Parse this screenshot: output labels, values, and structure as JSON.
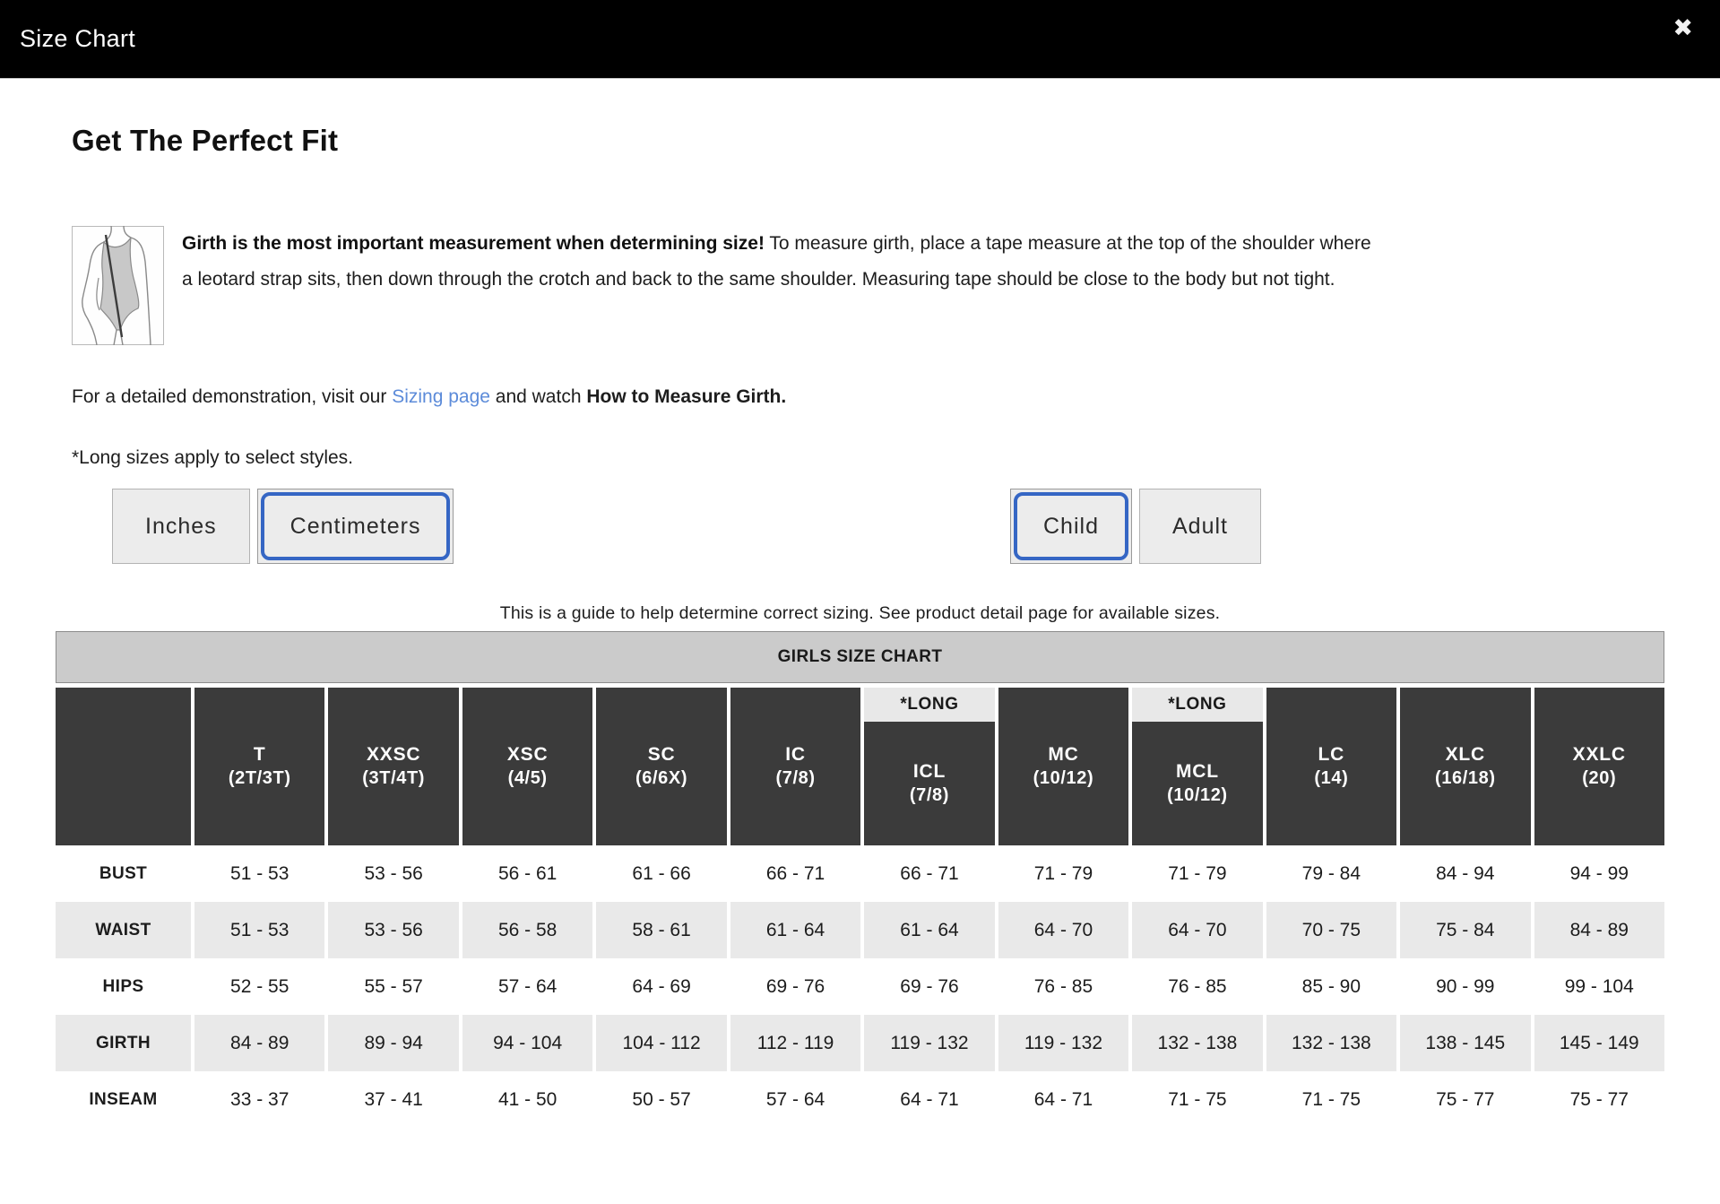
{
  "modal": {
    "title": "Size Chart",
    "close_icon": "✖"
  },
  "intro": {
    "heading": "Get The Perfect Fit",
    "girth_bold": "Girth is the most important measurement when determining size!",
    "girth_rest": " To measure girth, place a tape measure at the top of the shoulder where a leotard strap sits, then down through the crotch and back to the same shoulder. Measuring tape should be close to the body but not tight.",
    "demo_prefix": "For a detailed demonstration, visit our ",
    "demo_link": "Sizing page",
    "demo_middle": " and watch ",
    "demo_bold": "How to Measure Girth.",
    "long_note": "*Long sizes apply to select styles."
  },
  "controls": {
    "unit_buttons": [
      {
        "label": "Inches",
        "selected": false
      },
      {
        "label": "Centimeters",
        "selected": true
      }
    ],
    "age_buttons": [
      {
        "label": "Child",
        "selected": true
      },
      {
        "label": "Adult",
        "selected": false
      }
    ]
  },
  "guide_note": "This is a guide to help determine correct sizing. See product detail page for available sizes.",
  "chart": {
    "title": "GIRLS SIZE CHART",
    "long_label": "*LONG",
    "columns": [
      {
        "code": "T",
        "range": "(2T/3T)",
        "long": false
      },
      {
        "code": "XXSC",
        "range": "(3T/4T)",
        "long": false
      },
      {
        "code": "XSC",
        "range": "(4/5)",
        "long": false
      },
      {
        "code": "SC",
        "range": "(6/6X)",
        "long": false
      },
      {
        "code": "IC",
        "range": "(7/8)",
        "long": false
      },
      {
        "code": "ICL",
        "range": "(7/8)",
        "long": true
      },
      {
        "code": "MC",
        "range": "(10/12)",
        "long": false
      },
      {
        "code": "MCL",
        "range": "(10/12)",
        "long": true
      },
      {
        "code": "LC",
        "range": "(14)",
        "long": false
      },
      {
        "code": "XLC",
        "range": "(16/18)",
        "long": false
      },
      {
        "code": "XXLC",
        "range": "(20)",
        "long": false
      }
    ],
    "rows": [
      {
        "label": "BUST",
        "values": [
          "51 - 53",
          "53 - 56",
          "56 - 61",
          "61 - 66",
          "66 - 71",
          "66 - 71",
          "71 - 79",
          "71 - 79",
          "79 - 84",
          "84 - 94",
          "94 - 99"
        ]
      },
      {
        "label": "WAIST",
        "values": [
          "51 - 53",
          "53 - 56",
          "56 - 58",
          "58 - 61",
          "61 - 64",
          "61 - 64",
          "64 - 70",
          "64 - 70",
          "70 - 75",
          "75 - 84",
          "84 - 89"
        ]
      },
      {
        "label": "HIPS",
        "values": [
          "52 - 55",
          "55 - 57",
          "57 - 64",
          "64 - 69",
          "69 - 76",
          "69 - 76",
          "76 - 85",
          "76 - 85",
          "85 - 90",
          "90 - 99",
          "99 - 104"
        ]
      },
      {
        "label": "GIRTH",
        "values": [
          "84 - 89",
          "89 - 94",
          "94 - 104",
          "104 - 112",
          "112 - 119",
          "119 - 132",
          "119 - 132",
          "132 - 138",
          "132 - 138",
          "138 - 145",
          "145 - 149"
        ]
      },
      {
        "label": "INSEAM",
        "values": [
          "33 - 37",
          "37 - 41",
          "41 - 50",
          "50 - 57",
          "57 - 64",
          "64 - 71",
          "64 - 71",
          "71 - 75",
          "71 - 75",
          "75 - 77",
          "75 - 77"
        ]
      }
    ]
  },
  "colors": {
    "header_bar": "#000000",
    "table_header_cell": "#3b3b3b",
    "table_banner": "#cbcbcb",
    "zebra_row": "#e9e9e9",
    "selected_border": "#3566c4",
    "link": "#5c8bd9",
    "button_bg": "#ececec"
  }
}
